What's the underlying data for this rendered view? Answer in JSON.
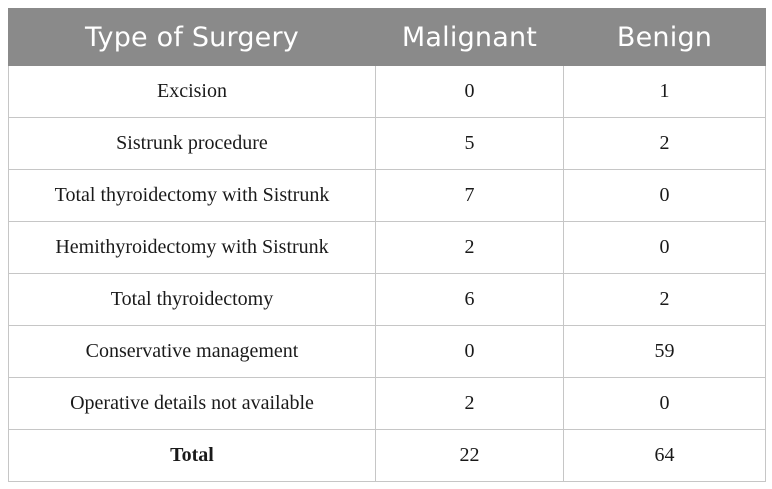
{
  "table": {
    "headers": [
      "Type of Surgery",
      "Malignant",
      "Benign"
    ],
    "rows": [
      [
        "Excision",
        "0",
        "1"
      ],
      [
        "Sistrunk procedure",
        "5",
        "2"
      ],
      [
        "Total thyroidectomy with Sistrunk",
        "7",
        "0"
      ],
      [
        "Hemithyroidectomy with Sistrunk",
        "2",
        "0"
      ],
      [
        "Total thyroidectomy",
        "6",
        "2"
      ],
      [
        "Conservative management",
        "0",
        "59"
      ],
      [
        "Operative details not available",
        "2",
        "0"
      ],
      [
        "Total",
        "22",
        "64"
      ]
    ]
  },
  "colors": {
    "header_background": "#8a8a8a",
    "header_text": "#ffffff",
    "grid_lines": "#c6c6c6"
  }
}
